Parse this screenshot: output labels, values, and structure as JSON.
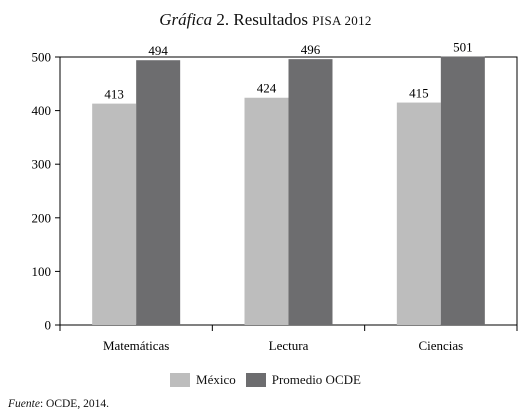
{
  "title": {
    "prefix_italic": "Gráfica",
    "number": "2.",
    "main": "Resultados",
    "small": "PISA 2012"
  },
  "source": {
    "label": "Fuente",
    "text": ": OCDE, 2014."
  },
  "colors": {
    "mexico": "#bdbdbd",
    "ocde": "#6d6d6f"
  },
  "chart_data": {
    "type": "bar",
    "categories": [
      "Matemáticas",
      "Lectura",
      "Ciencias"
    ],
    "series": [
      {
        "name": "México",
        "values": [
          413,
          424,
          415
        ]
      },
      {
        "name": "Promedio OCDE",
        "values": [
          494,
          496,
          501
        ]
      }
    ],
    "yticks": [
      0,
      100,
      200,
      300,
      400,
      500
    ],
    "ylim": [
      0,
      500
    ],
    "grid": false,
    "legend_position": "bottom"
  }
}
